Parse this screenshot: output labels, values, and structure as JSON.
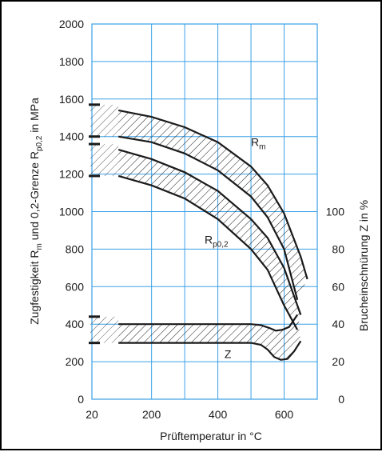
{
  "chart_data": {
    "type": "area",
    "xlabel": "Prüftemperatur in °C",
    "ylabel_left_parts": [
      "Zugfestigkeit R",
      "m",
      " und 0,2-Grenze R",
      "p0,2",
      " in MPa"
    ],
    "ylabel_right": "Brucheinschnürung Z in %",
    "x_ticks": [
      {
        "value": 20,
        "label": "20"
      },
      {
        "value": 200,
        "label": "200"
      },
      {
        "value": 400,
        "label": "400"
      },
      {
        "value": 600,
        "label": "600"
      }
    ],
    "y_left_ticks": [
      0,
      200,
      400,
      600,
      800,
      1000,
      1200,
      1400,
      1600,
      1800,
      2000
    ],
    "y_right_ticks": [
      {
        "value": 0,
        "label": "0"
      },
      {
        "value": 20,
        "label": "20"
      },
      {
        "value": 40,
        "label": "40"
      },
      {
        "value": 60,
        "label": "60"
      },
      {
        "value": 80,
        "label": "80"
      },
      {
        "value": 100,
        "label": "100"
      }
    ],
    "xlim": [
      20,
      700
    ],
    "ylim_left": [
      0,
      2000
    ],
    "ylim_right": [
      0,
      100
    ],
    "grid": true,
    "bands": [
      {
        "name": "R_m",
        "label_main": "R",
        "label_sub": "m",
        "upper": [
          [
            100,
            1540
          ],
          [
            200,
            1505
          ],
          [
            300,
            1450
          ],
          [
            400,
            1370
          ],
          [
            500,
            1240
          ],
          [
            550,
            1140
          ],
          [
            600,
            990
          ],
          [
            650,
            760
          ],
          [
            670,
            640
          ]
        ],
        "lower": [
          [
            100,
            1400
          ],
          [
            200,
            1370
          ],
          [
            300,
            1310
          ],
          [
            400,
            1220
          ],
          [
            500,
            1080
          ],
          [
            550,
            970
          ],
          [
            600,
            800
          ],
          [
            640,
            530
          ]
        ]
      },
      {
        "name": "R_p0,2",
        "label_main": "R",
        "label_sub": "p0,2",
        "upper": [
          [
            100,
            1330
          ],
          [
            200,
            1280
          ],
          [
            300,
            1210
          ],
          [
            400,
            1110
          ],
          [
            500,
            960
          ],
          [
            550,
            860
          ],
          [
            600,
            700
          ],
          [
            640,
            500
          ],
          [
            650,
            450
          ]
        ],
        "lower": [
          [
            100,
            1190
          ],
          [
            200,
            1140
          ],
          [
            300,
            1070
          ],
          [
            400,
            960
          ],
          [
            500,
            800
          ],
          [
            550,
            690
          ],
          [
            600,
            500
          ],
          [
            640,
            370
          ]
        ]
      },
      {
        "name": "Z",
        "label_main": "Z",
        "label_sub": "",
        "axis": "right",
        "upper": [
          [
            100,
            40
          ],
          [
            300,
            40
          ],
          [
            500,
            40
          ],
          [
            530,
            39.5
          ],
          [
            555,
            38
          ],
          [
            575,
            36.5
          ],
          [
            595,
            37
          ],
          [
            615,
            38.5
          ],
          [
            640,
            45
          ]
        ],
        "lower": [
          [
            100,
            30
          ],
          [
            300,
            30
          ],
          [
            500,
            30
          ],
          [
            530,
            29
          ],
          [
            550,
            26.5
          ],
          [
            570,
            22.5
          ],
          [
            590,
            21
          ],
          [
            610,
            21.5
          ],
          [
            630,
            25.5
          ],
          [
            650,
            31
          ]
        ]
      }
    ],
    "left_axis_ranges": [
      {
        "name": "R_m",
        "y": [
          1400,
          1570
        ]
      },
      {
        "name": "R_p0,2",
        "y": [
          1190,
          1360
        ]
      },
      {
        "name": "Z",
        "y": [
          300,
          440
        ]
      }
    ]
  },
  "colors": {
    "ink": "#1a1a1a",
    "grid": "#3aa0e6",
    "hatch": "#1a1a1a"
  }
}
